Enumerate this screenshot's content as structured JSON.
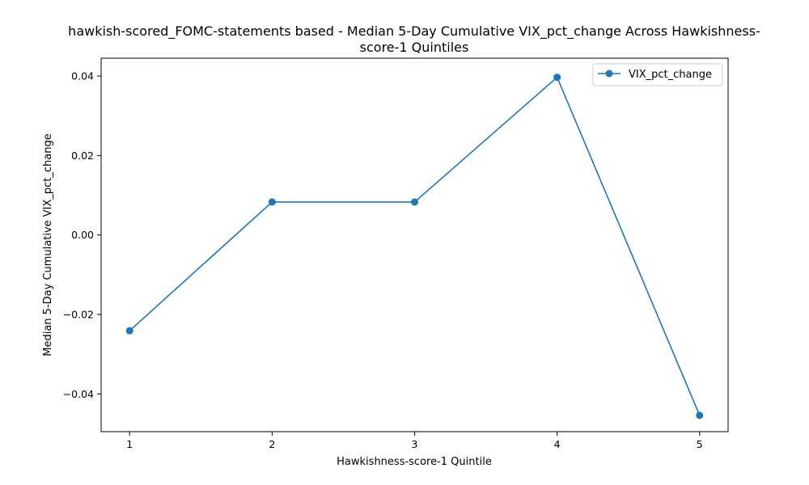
{
  "chart_data": {
    "type": "line",
    "title_lines": [
      "hawkish-scored_FOMC-statements based - Median 5-Day Cumulative VIX_pct_change Across Hawkishness-",
      "score-1 Quintiles"
    ],
    "xlabel": "Hawkishness-score-1 Quintile",
    "ylabel": "Median 5-Day Cumulative VIX_pct_change",
    "x": [
      1,
      2,
      3,
      4,
      5
    ],
    "x_tick_labels": [
      "1",
      "2",
      "3",
      "4",
      "5"
    ],
    "xlim": [
      0.8,
      5.2
    ],
    "ylim": [
      -0.0495,
      0.0445
    ],
    "y_ticks": [
      0.04,
      0.02,
      0.0,
      -0.02,
      -0.04
    ],
    "y_tick_labels": [
      "0.04",
      "0.02",
      "0.00",
      "−0.02",
      "−0.04"
    ],
    "series": [
      {
        "name": "VIX_pct_change",
        "values": [
          -0.0241,
          0.0083,
          0.0083,
          0.0397,
          -0.0454
        ],
        "color": "#1f77b4",
        "marker": "circle"
      }
    ],
    "legend": {
      "placement": "top-right"
    },
    "grid": false
  }
}
